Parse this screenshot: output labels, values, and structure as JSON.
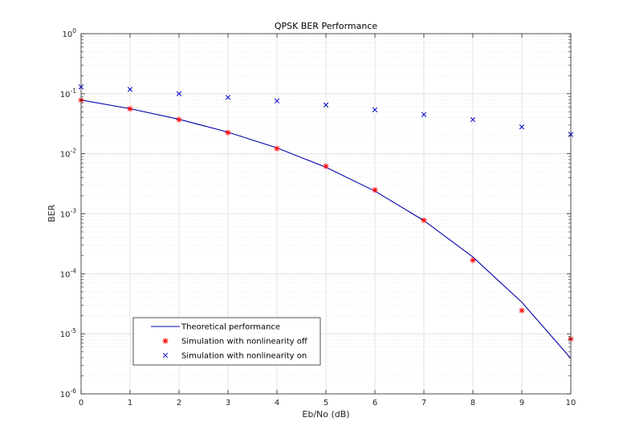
{
  "chart_data": {
    "type": "line",
    "title": "QPSK BER Performance",
    "xlabel": "Eb/No (dB)",
    "ylabel": "BER",
    "xlim": [
      0,
      10
    ],
    "ylim_exp": [
      -6,
      0
    ],
    "yscale": "log",
    "grid": true,
    "legend_position": "bottom-left",
    "x_ticks": [
      "0",
      "1",
      "2",
      "3",
      "4",
      "5",
      "6",
      "7",
      "8",
      "9",
      "10"
    ],
    "y_ticks": [
      {
        "base": "10",
        "exp": "-6",
        "value": 1e-06
      },
      {
        "base": "10",
        "exp": "-5",
        "value": 1e-05
      },
      {
        "base": "10",
        "exp": "-4",
        "value": 0.0001
      },
      {
        "base": "10",
        "exp": "-3",
        "value": 0.001
      },
      {
        "base": "10",
        "exp": "-2",
        "value": 0.01
      },
      {
        "base": "10",
        "exp": "-1",
        "value": 0.1
      },
      {
        "base": "10",
        "exp": "0",
        "value": 1
      }
    ],
    "series": [
      {
        "name": "Theoretical performance",
        "style": "line",
        "color": "#0000aa",
        "x": [
          0,
          1,
          2,
          3,
          4,
          5,
          6,
          7,
          8,
          9,
          10
        ],
        "y": [
          0.0786,
          0.0563,
          0.0375,
          0.0229,
          0.0125,
          0.00595,
          0.00239,
          0.00077,
          0.000191,
          3.36e-05,
          3.9e-06
        ]
      },
      {
        "name": "Simulation with nonlinearity off",
        "style": "marker-star",
        "color": "#ff0000",
        "x": [
          0,
          1,
          2,
          3,
          4,
          5,
          6,
          7,
          8,
          9,
          10
        ],
        "y": [
          0.078,
          0.056,
          0.037,
          0.0225,
          0.0122,
          0.0062,
          0.0025,
          0.00078,
          0.000168,
          2.45e-05,
          8.2e-06
        ]
      },
      {
        "name": "Simulation with nonlinearity on",
        "style": "marker-x",
        "color": "#0000cc",
        "x": [
          0,
          1,
          2,
          3,
          4,
          5,
          6,
          7,
          8,
          9,
          10
        ],
        "y": [
          0.13,
          0.118,
          0.1,
          0.087,
          0.076,
          0.065,
          0.054,
          0.045,
          0.037,
          0.028,
          0.021
        ]
      }
    ]
  }
}
